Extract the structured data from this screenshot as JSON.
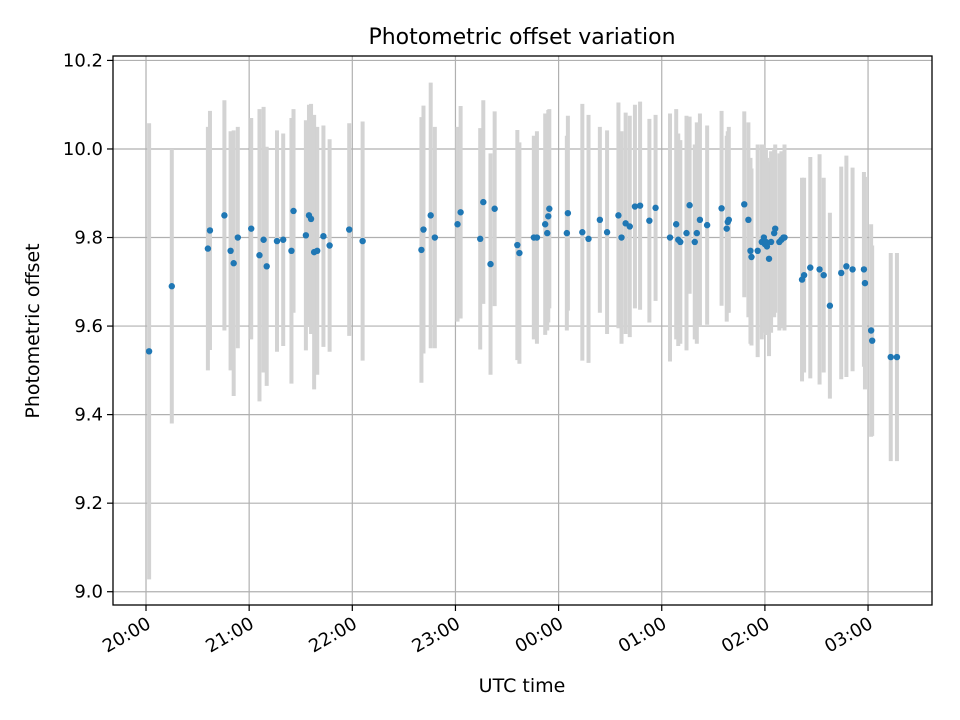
{
  "chart_data": {
    "type": "scatter",
    "title": "Photometric offset variation",
    "xlabel": "UTC time",
    "ylabel": "Photometric offset",
    "xlim": [
      19.68,
      27.62
    ],
    "ylim": [
      8.97,
      10.21
    ],
    "x_ticks": [
      {
        "h": 20,
        "label": "20:00"
      },
      {
        "h": 21,
        "label": "21:00"
      },
      {
        "h": 22,
        "label": "22:00"
      },
      {
        "h": 23,
        "label": "23:00"
      },
      {
        "h": 24,
        "label": "00:00"
      },
      {
        "h": 25,
        "label": "01:00"
      },
      {
        "h": 26,
        "label": "02:00"
      },
      {
        "h": 27,
        "label": "03:00"
      }
    ],
    "y_ticks": [
      {
        "v": 9.0,
        "label": "9.0"
      },
      {
        "v": 9.2,
        "label": "9.2"
      },
      {
        "v": 9.4,
        "label": "9.4"
      },
      {
        "v": 9.6,
        "label": "9.6"
      },
      {
        "v": 9.8,
        "label": "9.8"
      },
      {
        "v": 10.0,
        "label": "10.0"
      },
      {
        "v": 10.2,
        "label": "10.2"
      }
    ],
    "grid": true,
    "colors": {
      "marker": "#1f77b4",
      "errorbar": "#d3d3d3",
      "grid": "#b0b0b0"
    },
    "points": [
      [
        20.03,
        9.543,
        0.515
      ],
      [
        20.25,
        9.69,
        0.31
      ],
      [
        20.6,
        9.775,
        0.275
      ],
      [
        20.62,
        9.816,
        0.27
      ],
      [
        20.76,
        9.85,
        0.26
      ],
      [
        20.82,
        9.77,
        0.27
      ],
      [
        20.85,
        9.742,
        0.3
      ],
      [
        20.89,
        9.8,
        0.25
      ],
      [
        21.02,
        9.82,
        0.25
      ],
      [
        21.1,
        9.76,
        0.33
      ],
      [
        21.14,
        9.795,
        0.3
      ],
      [
        21.17,
        9.735,
        0.27
      ],
      [
        21.27,
        9.792,
        0.25
      ],
      [
        21.33,
        9.795,
        0.24
      ],
      [
        21.41,
        9.77,
        0.3
      ],
      [
        21.43,
        9.86,
        0.23
      ],
      [
        21.55,
        9.805,
        0.26
      ],
      [
        21.58,
        9.85,
        0.25
      ],
      [
        21.6,
        9.842,
        0.26
      ],
      [
        21.63,
        9.767,
        0.31
      ],
      [
        21.66,
        9.77,
        0.28
      ],
      [
        21.72,
        9.803,
        0.25
      ],
      [
        21.78,
        9.782,
        0.24
      ],
      [
        21.97,
        9.818,
        0.24
      ],
      [
        22.1,
        9.792,
        0.27
      ],
      [
        22.67,
        9.772,
        0.3
      ],
      [
        22.69,
        9.818,
        0.28
      ],
      [
        22.76,
        9.85,
        0.3
      ],
      [
        22.8,
        9.8,
        0.25
      ],
      [
        23.02,
        9.83,
        0.22
      ],
      [
        23.05,
        9.857,
        0.24
      ],
      [
        23.24,
        9.797,
        0.25
      ],
      [
        23.27,
        9.88,
        0.23
      ],
      [
        23.34,
        9.74,
        0.25
      ],
      [
        23.38,
        9.865,
        0.22
      ],
      [
        23.6,
        9.783,
        0.26
      ],
      [
        23.62,
        9.765,
        0.25
      ],
      [
        23.76,
        9.8,
        0.23
      ],
      [
        23.79,
        9.8,
        0.24
      ],
      [
        23.87,
        9.83,
        0.25
      ],
      [
        23.89,
        9.81,
        0.22
      ],
      [
        23.9,
        9.848,
        0.24
      ],
      [
        23.91,
        9.865,
        0.225
      ],
      [
        24.08,
        9.81,
        0.22
      ],
      [
        24.09,
        9.855,
        0.22
      ],
      [
        24.23,
        9.812,
        0.29
      ],
      [
        24.29,
        9.797,
        0.28
      ],
      [
        24.4,
        9.84,
        0.21
      ],
      [
        24.47,
        9.812,
        0.23
      ],
      [
        24.58,
        9.85,
        0.255
      ],
      [
        24.61,
        9.8,
        0.24
      ],
      [
        24.65,
        9.832,
        0.25
      ],
      [
        24.69,
        9.825,
        0.25
      ],
      [
        24.74,
        9.87,
        0.23
      ],
      [
        24.79,
        9.872,
        0.235
      ],
      [
        24.88,
        9.838,
        0.23
      ],
      [
        24.94,
        9.867,
        0.21
      ],
      [
        25.08,
        9.8,
        0.28
      ],
      [
        25.14,
        9.83,
        0.26
      ],
      [
        25.16,
        9.795,
        0.24
      ],
      [
        25.18,
        9.79,
        0.23
      ],
      [
        25.24,
        9.81,
        0.265
      ],
      [
        25.27,
        9.873,
        0.2
      ],
      [
        25.32,
        9.79,
        0.22
      ],
      [
        25.34,
        9.81,
        0.25
      ],
      [
        25.37,
        9.84,
        0.24
      ],
      [
        25.44,
        9.828,
        0.225
      ],
      [
        25.58,
        9.866,
        0.22
      ],
      [
        25.63,
        9.82,
        0.21
      ],
      [
        25.64,
        9.835,
        0.205
      ],
      [
        25.65,
        9.84,
        0.21
      ],
      [
        25.8,
        9.875,
        0.21
      ],
      [
        25.84,
        9.84,
        0.22
      ],
      [
        25.86,
        9.77,
        0.21
      ],
      [
        25.87,
        9.756,
        0.2
      ],
      [
        25.93,
        9.77,
        0.24
      ],
      [
        25.97,
        9.79,
        0.22
      ],
      [
        25.99,
        9.8,
        0.21
      ],
      [
        26.0,
        9.785,
        0.2
      ],
      [
        26.01,
        9.79,
        0.21
      ],
      [
        26.02,
        9.78,
        0.2
      ],
      [
        26.04,
        9.752,
        0.22
      ],
      [
        26.06,
        9.79,
        0.205
      ],
      [
        26.09,
        9.81,
        0.19
      ],
      [
        26.1,
        9.82,
        0.19
      ],
      [
        26.14,
        9.79,
        0.2
      ],
      [
        26.16,
        9.795,
        0.2
      ],
      [
        26.18,
        9.8,
        0.19
      ],
      [
        26.19,
        9.8,
        0.21
      ],
      [
        26.36,
        9.705,
        0.23
      ],
      [
        26.38,
        9.715,
        0.22
      ],
      [
        26.44,
        9.732,
        0.25
      ],
      [
        26.53,
        9.728,
        0.26
      ],
      [
        26.57,
        9.715,
        0.22
      ],
      [
        26.63,
        9.646,
        0.21
      ],
      [
        26.74,
        9.72,
        0.24
      ],
      [
        26.79,
        9.735,
        0.25
      ],
      [
        26.85,
        9.728,
        0.23
      ],
      [
        26.96,
        9.728,
        0.22
      ],
      [
        26.97,
        9.697,
        0.24
      ],
      [
        27.03,
        9.59,
        0.24
      ],
      [
        27.04,
        9.567,
        0.215
      ],
      [
        27.22,
        9.53,
        0.235
      ],
      [
        27.28,
        9.53,
        0.235
      ]
    ]
  }
}
